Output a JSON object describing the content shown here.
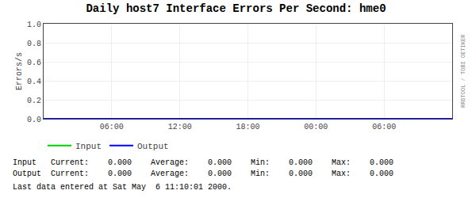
{
  "chart_data": {
    "type": "line",
    "title": "Daily host7 Interface Errors Per Second: hme0",
    "ylabel": "Errors/s",
    "categories": [
      null,
      "06:00",
      "12:00",
      "18:00",
      "00:00",
      "06:00",
      null
    ],
    "series": [
      {
        "name": "Input",
        "color": "#00cc00",
        "values": [
          0,
          0,
          0,
          0,
          0,
          0,
          0
        ]
      },
      {
        "name": "Output",
        "color": "#0000ff",
        "values": [
          0,
          0,
          0,
          0,
          0,
          0,
          0
        ]
      }
    ],
    "ylim": [
      0.0,
      1.0
    ],
    "yticks": [
      {
        "value": 0.0,
        "label": "0.0"
      },
      0.2,
      0.4,
      0.6,
      0.8,
      {
        "value": 1.0,
        "label": "1.0"
      }
    ],
    "grid": true,
    "legend": "bottom",
    "annotations": [
      "Input   Current:    0.000    Average:    0.000    Min:    0.000    Max:    0.000",
      "Output  Current:    0.000    Average:    0.000    Min:    0.000    Max:    0.000",
      "Last data entered at Sat May  6 11:10:01 2000.",
      "RRDTOOL / TOBI OETIKER"
    ]
  }
}
